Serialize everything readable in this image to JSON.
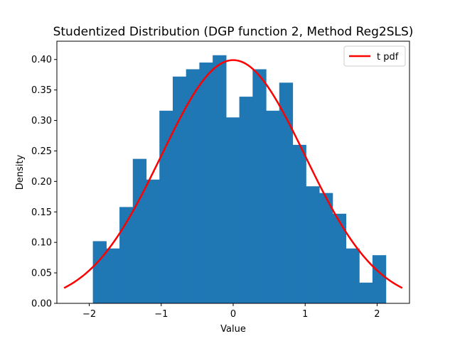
{
  "chart_data": {
    "type": "bar",
    "title": "Studentized Distribution (DGP function 2, Method Reg2SLS)",
    "xlabel": "Value",
    "ylabel": "Density",
    "xlim": [
      -2.45,
      2.45
    ],
    "ylim": [
      0,
      0.43
    ],
    "xticks": [
      -2,
      -1,
      0,
      1,
      2
    ],
    "xtick_labels": [
      "−2",
      "−1",
      "0",
      "1",
      "2"
    ],
    "yticks": [
      0.0,
      0.05,
      0.1,
      0.15,
      0.2,
      0.25,
      0.3,
      0.35,
      0.4
    ],
    "ytick_labels": [
      "0.00",
      "0.05",
      "0.10",
      "0.15",
      "0.20",
      "0.25",
      "0.30",
      "0.35",
      "0.40"
    ],
    "grid": false,
    "legend": {
      "position": "upper right",
      "entries": [
        "t pdf"
      ]
    },
    "histogram": {
      "color": "#1f77b4",
      "bin_edges": [
        -1.95,
        -1.765,
        -1.58,
        -1.395,
        -1.21,
        -1.025,
        -0.84,
        -0.655,
        -0.47,
        -0.285,
        -0.1,
        0.085,
        0.27,
        0.455,
        0.64,
        0.825,
        1.01,
        1.195,
        1.38,
        1.565,
        1.75,
        1.935,
        2.12
      ],
      "values": [
        0.102,
        0.09,
        0.158,
        0.237,
        0.203,
        0.316,
        0.372,
        0.384,
        0.395,
        0.407,
        0.305,
        0.339,
        0.384,
        0.316,
        0.362,
        0.26,
        0.192,
        0.181,
        0.147,
        0.09,
        0.034,
        0.079
      ]
    },
    "series": [
      {
        "name": "t pdf",
        "type": "line",
        "color": "#ff0000",
        "x_range": [
          -2.35,
          2.35
        ],
        "peak": 0.399
      }
    ]
  }
}
